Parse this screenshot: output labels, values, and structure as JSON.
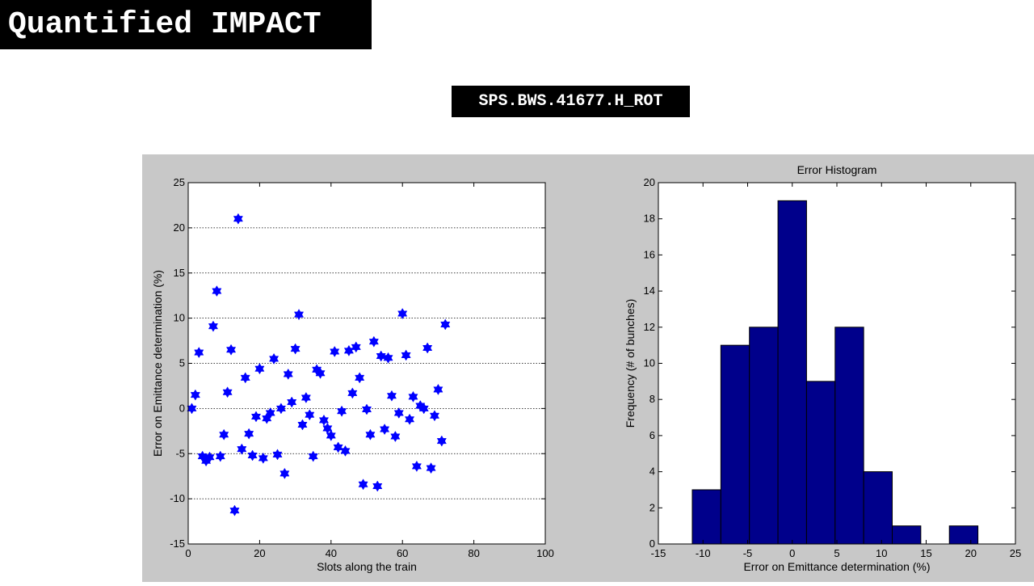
{
  "slide_title": "Quantified IMPACT",
  "device_label": "SPS.BWS.41677.H_ROT",
  "colors": {
    "marker": "#0000ff",
    "bar": "#00008b",
    "panel_background": "#c8c8c8",
    "grid": "#000000"
  },
  "chart_data": [
    {
      "type": "scatter",
      "title": "",
      "xlabel": "Slots along the train",
      "ylabel": "Error on Emittance determination (%)",
      "xlim": [
        0,
        100
      ],
      "ylim": [
        -15,
        25
      ],
      "x_ticks": [
        0,
        20,
        40,
        60,
        80,
        100
      ],
      "y_ticks": [
        -15,
        -10,
        -5,
        0,
        5,
        10,
        15,
        20,
        25
      ],
      "grid": "horizontal dotted",
      "marker": "hexagram",
      "points": [
        [
          1,
          0.0
        ],
        [
          2,
          1.5
        ],
        [
          3,
          6.2
        ],
        [
          4,
          -5.3
        ],
        [
          5,
          -5.8
        ],
        [
          6,
          -5.4
        ],
        [
          7,
          9.1
        ],
        [
          8,
          13.0
        ],
        [
          9,
          -5.3
        ],
        [
          10,
          -2.9
        ],
        [
          11,
          1.8
        ],
        [
          12,
          6.5
        ],
        [
          13,
          -11.3
        ],
        [
          14,
          21.0
        ],
        [
          15,
          -4.5
        ],
        [
          16,
          3.4
        ],
        [
          17,
          -2.8
        ],
        [
          18,
          -5.2
        ],
        [
          19,
          -0.9
        ],
        [
          20,
          4.4
        ],
        [
          21,
          -5.5
        ],
        [
          22,
          -1.1
        ],
        [
          23,
          -0.5
        ],
        [
          24,
          5.5
        ],
        [
          25,
          -5.1
        ],
        [
          26,
          0.0
        ],
        [
          27,
          -7.2
        ],
        [
          28,
          3.8
        ],
        [
          29,
          0.7
        ],
        [
          30,
          6.6
        ],
        [
          31,
          10.4
        ],
        [
          32,
          -1.8
        ],
        [
          33,
          1.2
        ],
        [
          34,
          -0.7
        ],
        [
          35,
          -5.3
        ],
        [
          36,
          4.3
        ],
        [
          37,
          3.9
        ],
        [
          38,
          -1.3
        ],
        [
          39,
          -2.2
        ],
        [
          40,
          -3.0
        ],
        [
          41,
          6.3
        ],
        [
          42,
          -4.3
        ],
        [
          43,
          -0.3
        ],
        [
          44,
          -4.7
        ],
        [
          45,
          6.4
        ],
        [
          46,
          1.7
        ],
        [
          47,
          6.8
        ],
        [
          48,
          3.4
        ],
        [
          49,
          -8.4
        ],
        [
          50,
          -0.1
        ],
        [
          51,
          -2.9
        ],
        [
          52,
          7.4
        ],
        [
          53,
          -8.6
        ],
        [
          54,
          5.8
        ],
        [
          55,
          -2.3
        ],
        [
          56,
          5.6
        ],
        [
          57,
          1.4
        ],
        [
          58,
          -3.1
        ],
        [
          59,
          -0.5
        ],
        [
          60,
          10.5
        ],
        [
          61,
          5.9
        ],
        [
          62,
          -1.2
        ],
        [
          63,
          1.3
        ],
        [
          64,
          -6.4
        ],
        [
          65,
          0.3
        ],
        [
          66,
          0.0
        ],
        [
          67,
          6.7
        ],
        [
          68,
          -6.6
        ],
        [
          69,
          -0.8
        ],
        [
          70,
          2.1
        ],
        [
          71,
          -3.6
        ],
        [
          72,
          9.3
        ]
      ]
    },
    {
      "type": "bar",
      "title": "Error Histogram",
      "xlabel": "Error on Emittance determination (%)",
      "ylabel": "Frequency (# of bunches)",
      "xlim": [
        -15,
        25
      ],
      "ylim": [
        0,
        20
      ],
      "x_ticks": [
        -15,
        -10,
        -5,
        0,
        5,
        10,
        15,
        20,
        25
      ],
      "y_ticks": [
        0,
        2,
        4,
        6,
        8,
        10,
        12,
        14,
        16,
        18,
        20
      ],
      "grid": "off",
      "bin_edges": [
        -11.2,
        -8.0,
        -4.8,
        -1.6,
        1.6,
        4.8,
        8.0,
        11.2,
        14.4,
        17.6,
        20.8
      ],
      "values": [
        3,
        11,
        12,
        19,
        9,
        12,
        4,
        1,
        0,
        1
      ]
    }
  ]
}
